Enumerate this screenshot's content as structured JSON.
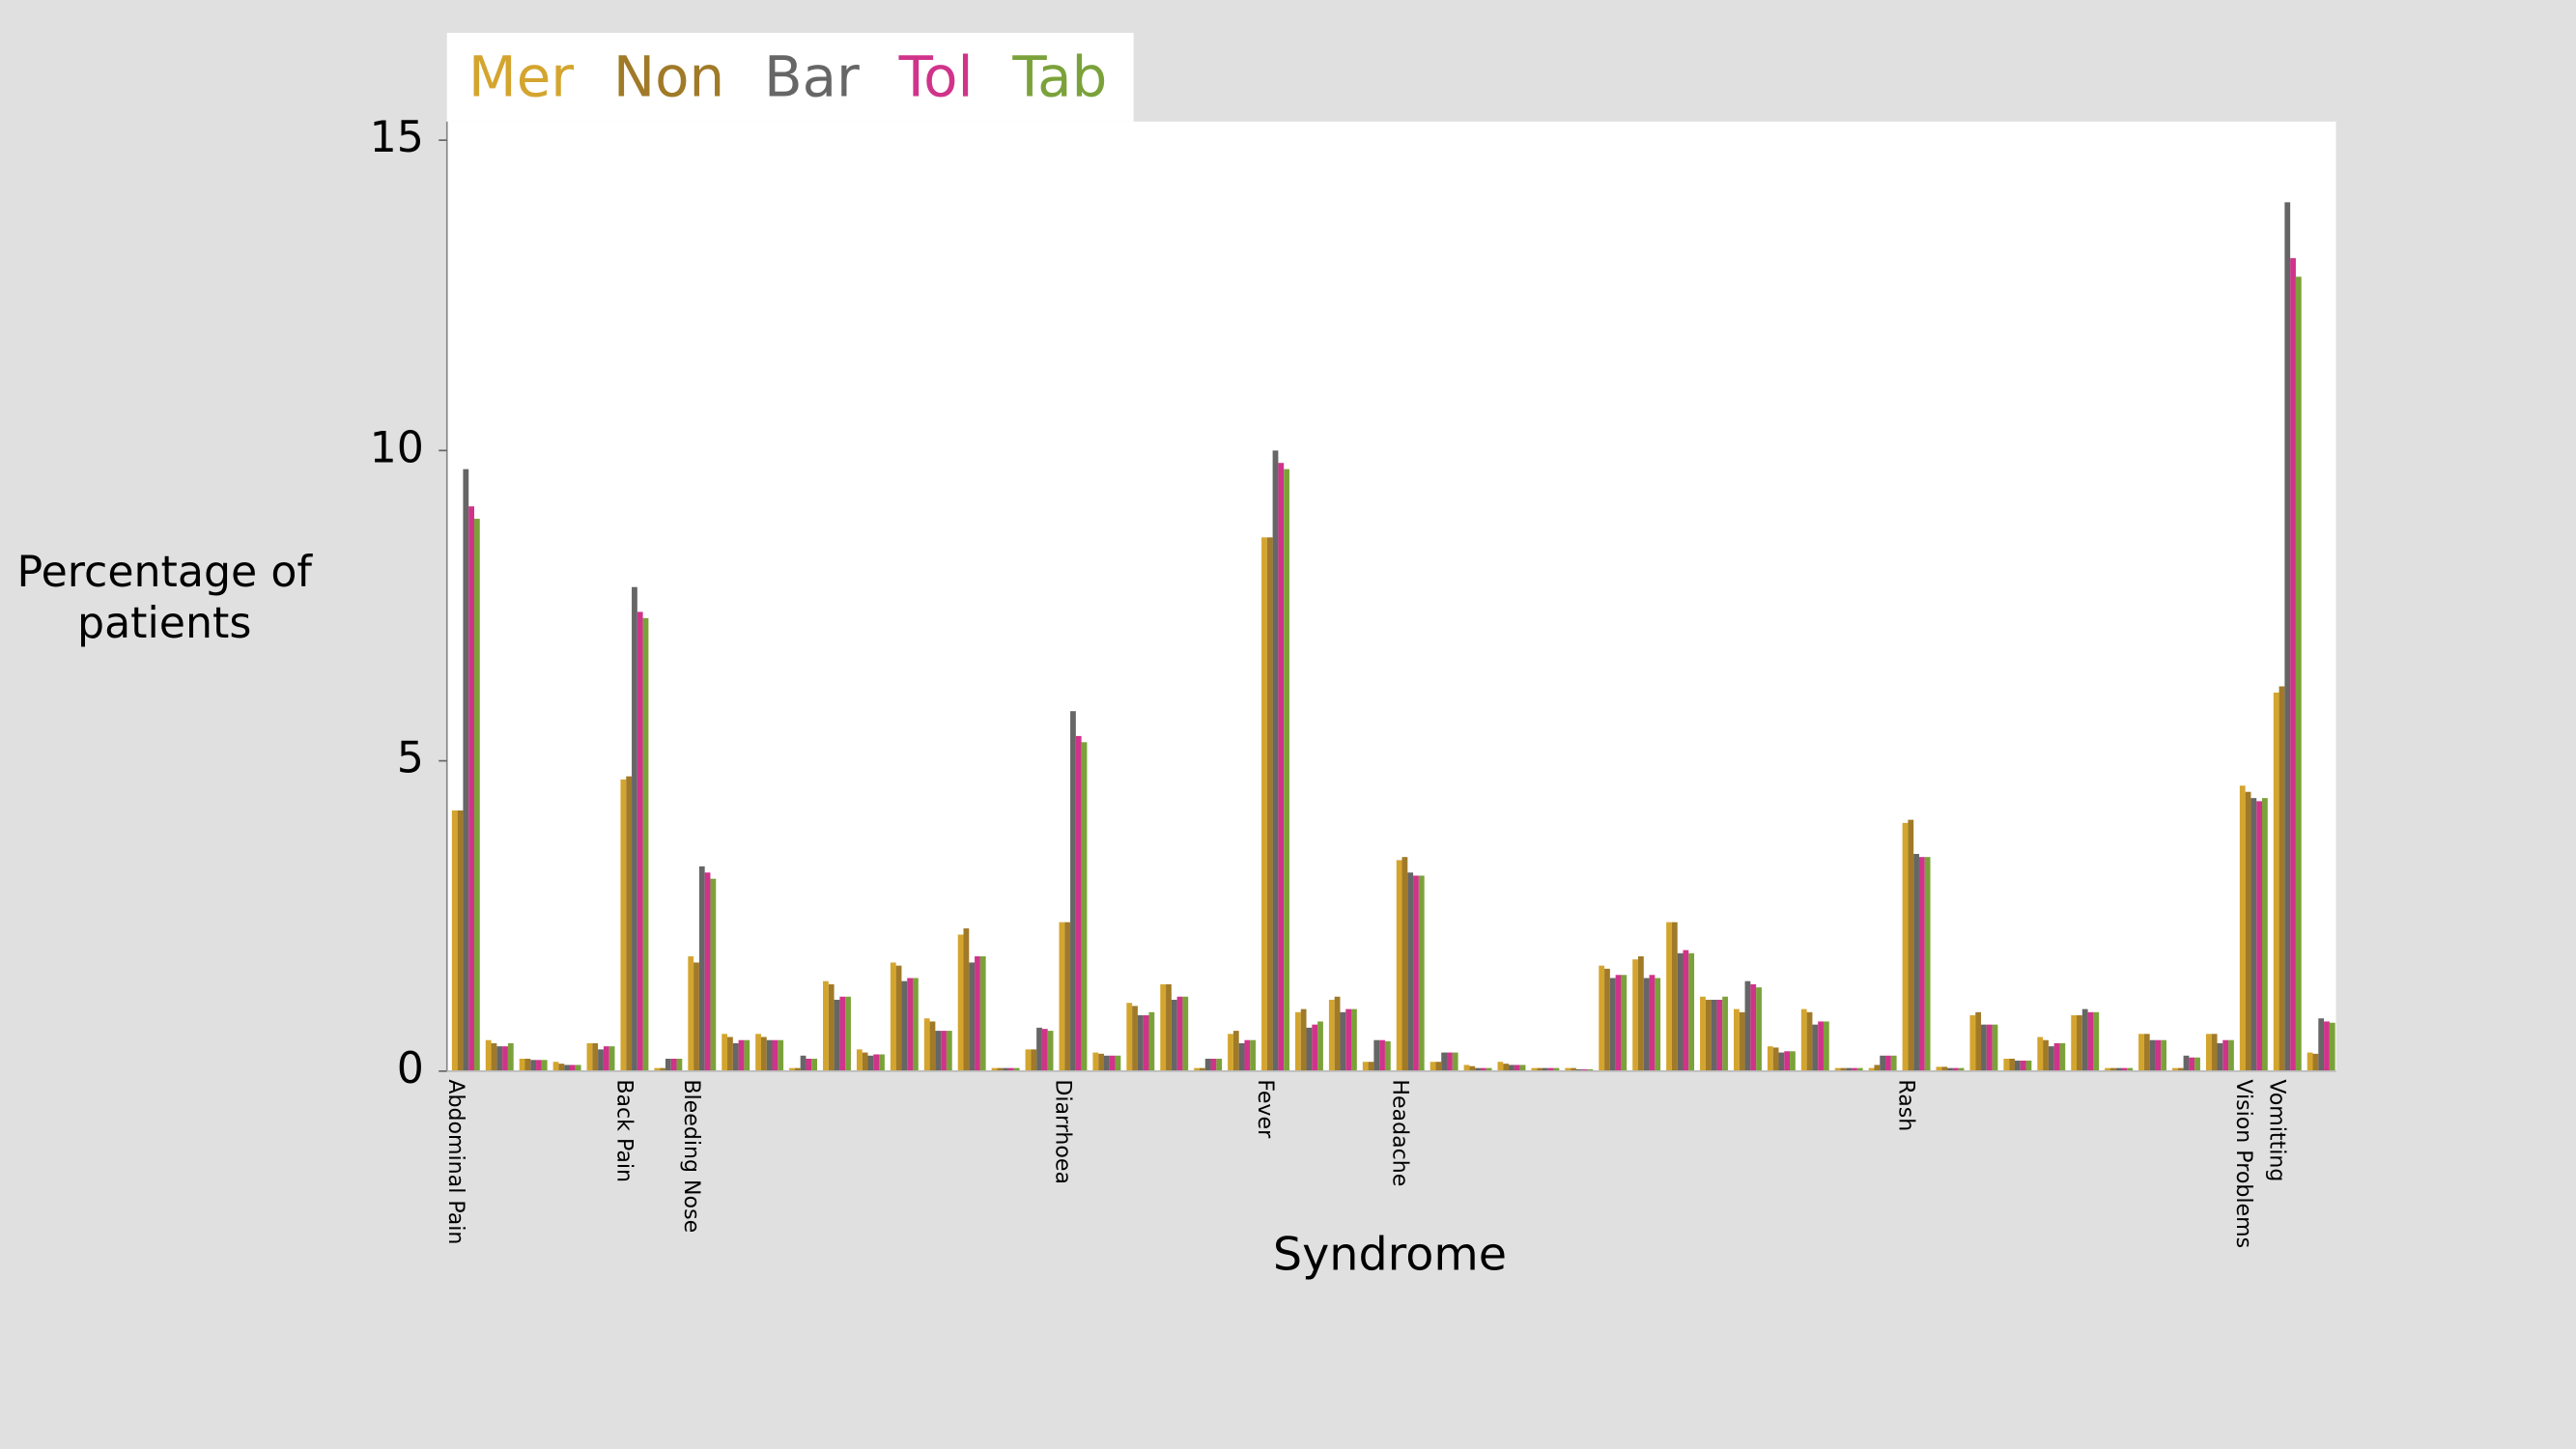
{
  "chart_data": {
    "type": "bar",
    "ylabel": "Percentage of patients",
    "xlabel": "Syndrome",
    "categories": [
      "Abdominal Pain",
      null,
      null,
      null,
      null,
      "Back Pain",
      null,
      "Bleeding Nose",
      null,
      null,
      null,
      null,
      null,
      null,
      null,
      null,
      null,
      null,
      "Diarrhoea",
      null,
      null,
      null,
      null,
      null,
      "Fever",
      null,
      null,
      null,
      "Headache",
      null,
      null,
      null,
      null,
      null,
      null,
      null,
      null,
      null,
      null,
      null,
      null,
      null,
      null,
      "Rash",
      null,
      null,
      null,
      null,
      null,
      null,
      null,
      null,
      null,
      "Vision Problems",
      "Vomitting",
      null
    ],
    "series": [
      {
        "name": "Mer",
        "color": "#d4a52e",
        "values": [
          4.2,
          0.5,
          0.2,
          0.15,
          0.45,
          4.7,
          0.05,
          1.85,
          0.6,
          0.6,
          0.05,
          1.45,
          0.35,
          1.75,
          0.85,
          2.2,
          0.05,
          0.35,
          2.4,
          0.3,
          1.1,
          1.4,
          0.05,
          0.6,
          8.6,
          0.95,
          1.15,
          0.15,
          3.4,
          0.15,
          0.1,
          0.15,
          0.05,
          0.05,
          1.7,
          1.8,
          2.4,
          1.2,
          1.0,
          0.4,
          1.0,
          0.05,
          0.05,
          4.0,
          0.07,
          0.9,
          0.2,
          0.55,
          0.9,
          0.05,
          0.6,
          0.05,
          0.6,
          4.6,
          6.1,
          0.3
        ]
      },
      {
        "name": "Non",
        "color": "#a07a28",
        "values": [
          4.2,
          0.45,
          0.2,
          0.12,
          0.45,
          4.75,
          0.05,
          1.75,
          0.55,
          0.55,
          0.05,
          1.4,
          0.3,
          1.7,
          0.8,
          2.3,
          0.05,
          0.35,
          2.4,
          0.28,
          1.05,
          1.4,
          0.05,
          0.65,
          8.6,
          1.0,
          1.2,
          0.15,
          3.45,
          0.15,
          0.08,
          0.12,
          0.05,
          0.05,
          1.65,
          1.85,
          2.4,
          1.15,
          0.95,
          0.38,
          0.95,
          0.05,
          0.1,
          4.05,
          0.07,
          0.95,
          0.2,
          0.5,
          0.9,
          0.05,
          0.6,
          0.05,
          0.6,
          4.5,
          6.2,
          0.28
        ]
      },
      {
        "name": "Bar",
        "color": "#666666",
        "values": [
          9.7,
          0.4,
          0.18,
          0.1,
          0.35,
          7.8,
          0.2,
          3.3,
          0.45,
          0.5,
          0.25,
          1.15,
          0.25,
          1.45,
          0.65,
          1.75,
          0.05,
          0.7,
          5.8,
          0.25,
          0.9,
          1.15,
          0.2,
          0.45,
          10.0,
          0.7,
          0.95,
          0.5,
          3.2,
          0.3,
          0.05,
          0.1,
          0.05,
          0.03,
          1.5,
          1.5,
          1.9,
          1.15,
          1.45,
          0.3,
          0.75,
          0.05,
          0.25,
          3.5,
          0.05,
          0.75,
          0.17,
          0.4,
          1.0,
          0.05,
          0.5,
          0.25,
          0.45,
          4.4,
          14.0,
          0.85
        ]
      },
      {
        "name": "Tol",
        "color": "#d0338a",
        "values": [
          9.1,
          0.4,
          0.18,
          0.1,
          0.4,
          7.4,
          0.2,
          3.2,
          0.5,
          0.5,
          0.2,
          1.2,
          0.27,
          1.5,
          0.65,
          1.85,
          0.05,
          0.68,
          5.4,
          0.25,
          0.9,
          1.2,
          0.2,
          0.5,
          9.8,
          0.75,
          1.0,
          0.5,
          3.15,
          0.3,
          0.05,
          0.1,
          0.05,
          0.03,
          1.55,
          1.55,
          1.95,
          1.15,
          1.4,
          0.32,
          0.8,
          0.05,
          0.25,
          3.45,
          0.05,
          0.75,
          0.17,
          0.45,
          0.95,
          0.05,
          0.5,
          0.22,
          0.5,
          4.35,
          13.1,
          0.8
        ]
      },
      {
        "name": "Tab",
        "color": "#7ba23a",
        "values": [
          8.9,
          0.45,
          0.18,
          0.1,
          0.4,
          7.3,
          0.2,
          3.1,
          0.5,
          0.5,
          0.2,
          1.2,
          0.27,
          1.5,
          0.65,
          1.85,
          0.05,
          0.65,
          5.3,
          0.25,
          0.95,
          1.2,
          0.2,
          0.5,
          9.7,
          0.8,
          1.0,
          0.48,
          3.15,
          0.3,
          0.05,
          0.1,
          0.05,
          0.03,
          1.55,
          1.5,
          1.9,
          1.2,
          1.35,
          0.32,
          0.8,
          0.05,
          0.25,
          3.45,
          0.05,
          0.75,
          0.17,
          0.45,
          0.95,
          0.05,
          0.5,
          0.22,
          0.5,
          4.4,
          12.8,
          0.78
        ]
      }
    ],
    "ylim": [
      0,
      15.3
    ],
    "yticks": [
      0,
      5,
      10,
      15
    ],
    "legend": "top-left"
  }
}
